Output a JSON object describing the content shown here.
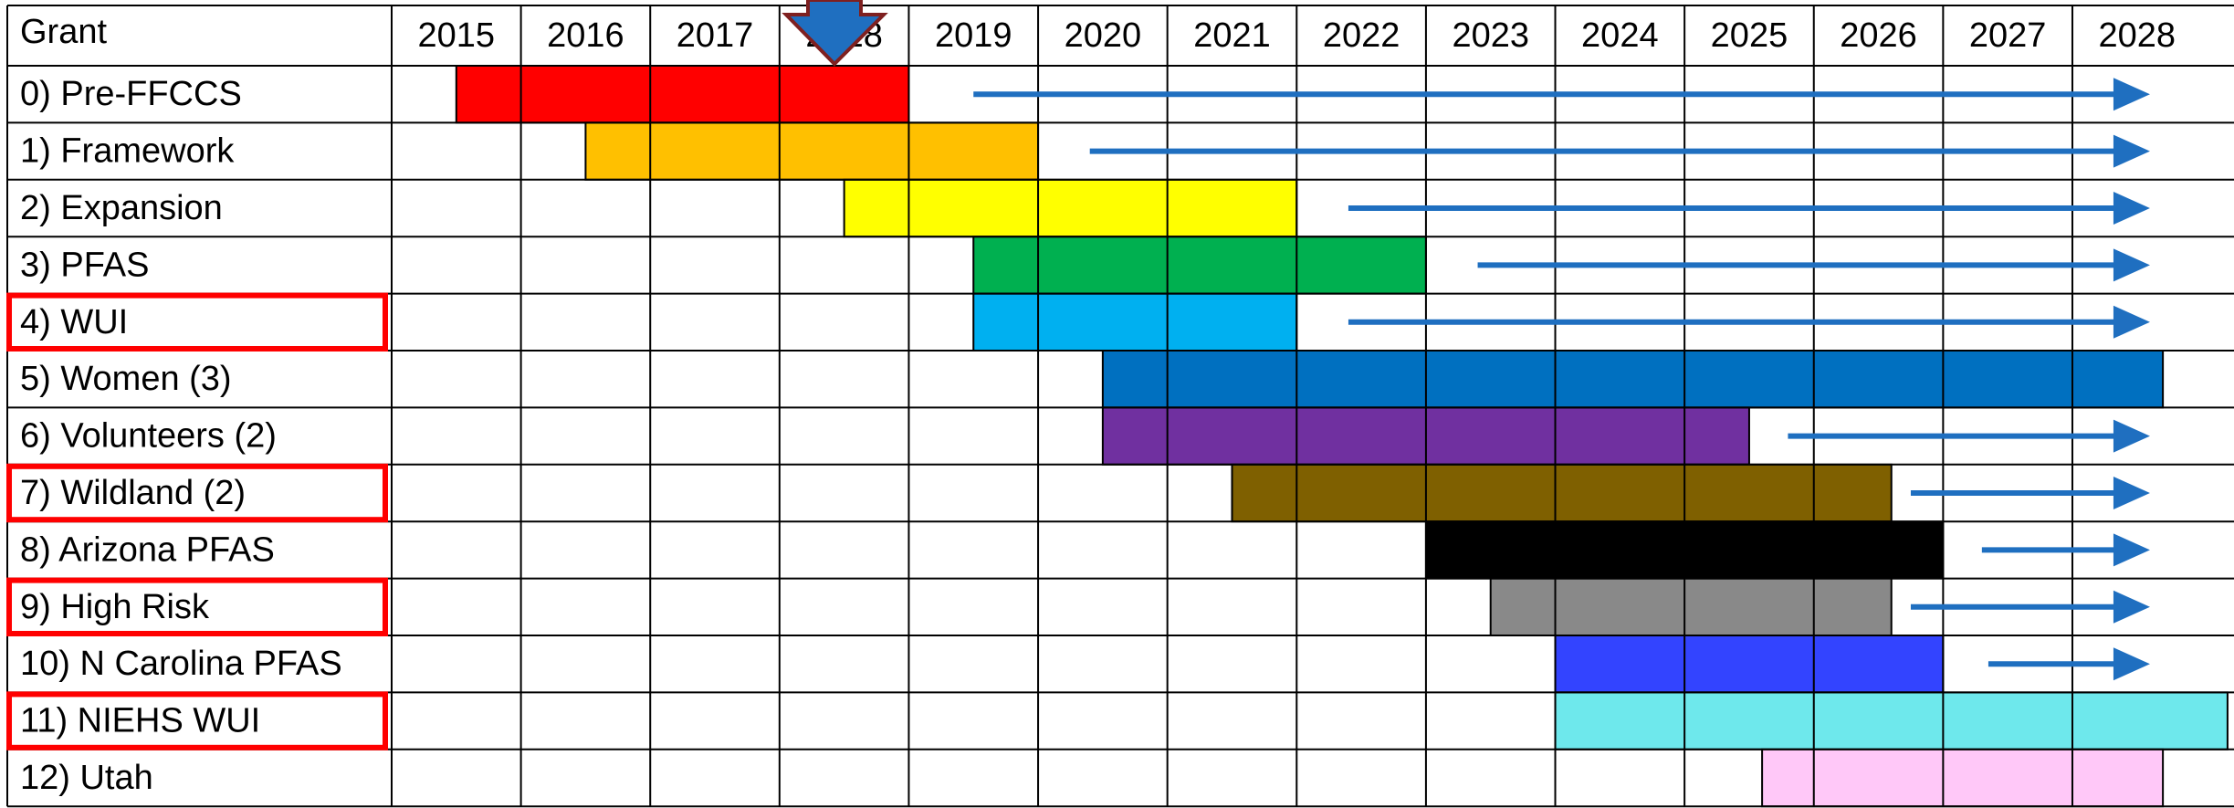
{
  "chart_data": {
    "type": "gantt",
    "header": "Grant",
    "categories": [
      "0) Pre-FFCCS",
      "1) Framework",
      "2) Expansion",
      "3) PFAS",
      "4) WUI",
      "5) Women (3)",
      "6) Volunteers (2)",
      "7) Wildland (2)",
      "8) Arizona PFAS",
      "9) High Risk",
      "10) N Carolina PFAS",
      "11) NIEHS WUI",
      "12) Utah"
    ],
    "start": [
      2015.5,
      2016.5,
      2018.5,
      2019.5,
      2019.5,
      2020.5,
      2020.5,
      2021.5,
      2023.0,
      2023.5,
      2024.0,
      2024.0,
      2025.6
    ],
    "end": [
      2019.0,
      2020.0,
      2022.0,
      2023.0,
      2022.0,
      2028.7,
      2025.5,
      2026.6,
      2027.0,
      2026.6,
      2027.0,
      2029.2,
      2028.7
    ],
    "colors": [
      "#ff0000",
      "#ffc000",
      "#ffff00",
      "#00b050",
      "#00b0f0",
      "#0070c0",
      "#7030a0",
      "#7f6000",
      "#000000",
      "#898989",
      "#3344ff",
      "#6ee8ec",
      "#ffc8f8"
    ],
    "arrow_start": [
      2019.5,
      2020.4,
      2022.4,
      2023.4,
      2022.4,
      null,
      2025.8,
      2026.75,
      2027.3,
      2026.75,
      2027.35,
      null,
      null
    ],
    "arrow_end": [
      2028.6,
      2028.6,
      2028.6,
      2028.6,
      2028.6,
      null,
      2028.6,
      2028.6,
      2028.6,
      2028.6,
      2028.6,
      null,
      null
    ],
    "arrow_color": "#1f6fc0",
    "highlighted": [
      false,
      false,
      false,
      false,
      true,
      false,
      false,
      true,
      false,
      true,
      false,
      true,
      false
    ],
    "highlight_color": "#ff0000",
    "xlim": [
      2015,
      2029.25
    ],
    "xticks": [
      2015,
      2016,
      2017,
      2018,
      2019,
      2020,
      2021,
      2022,
      2023,
      2024,
      2025,
      2026,
      2027,
      2028
    ]
  }
}
